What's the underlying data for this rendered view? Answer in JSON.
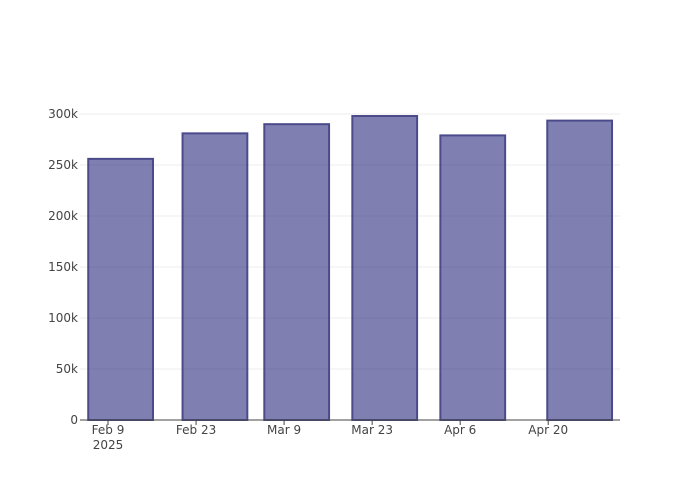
{
  "chart_data": {
    "type": "bar",
    "x": [
      "2025-02-11",
      "2025-02-26",
      "2025-03-11",
      "2025-03-25",
      "2025-04-08",
      "2025-04-25"
    ],
    "values": [
      256000,
      281000,
      290000,
      298000,
      279000,
      293500
    ],
    "color": "rgba(0,0,100,0.5)",
    "line_color": "#4b4b8c",
    "xlim": [
      "2025-02-04T13:00",
      "2025-05-01T10:00"
    ],
    "xticks": [
      {
        "value": "2025-02-09",
        "label": "Feb 9\n2025"
      },
      {
        "value": "2025-02-23",
        "label": "Feb 23"
      },
      {
        "value": "2025-03-09",
        "label": "Mar 9"
      },
      {
        "value": "2025-03-23",
        "label": "Mar 23"
      },
      {
        "value": "2025-04-06",
        "label": "Apr 6"
      },
      {
        "value": "2025-04-20",
        "label": "Apr 20"
      }
    ],
    "ylim": [
      0,
      313700
    ],
    "yticks": [
      0,
      {
        "value": 50000,
        "label": "50k"
      },
      {
        "value": 100000,
        "label": "100k"
      },
      {
        "value": 150000,
        "label": "150k"
      },
      {
        "value": 200000,
        "label": "200k"
      },
      {
        "value": 250000,
        "label": "250k"
      },
      {
        "value": 300000,
        "label": "300k"
      }
    ],
    "grid": true
  }
}
